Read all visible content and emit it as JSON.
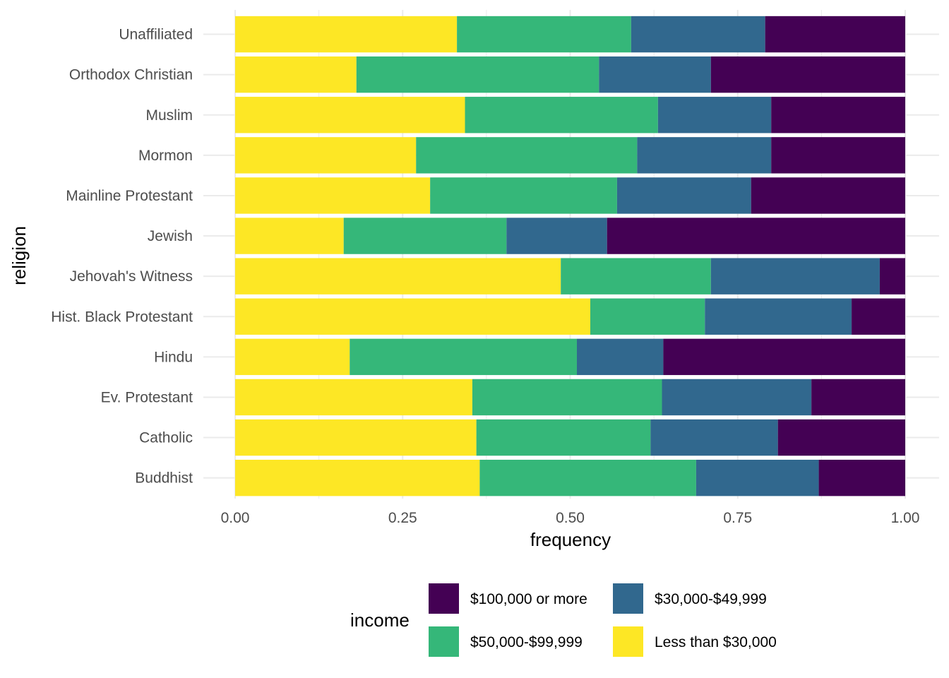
{
  "chart_data": {
    "type": "bar",
    "orientation": "horizontal",
    "stacked": "fill",
    "xlabel": "frequency",
    "ylabel": "religion",
    "xlim": [
      0,
      1
    ],
    "x_ticks": [
      0,
      0.25,
      0.5,
      0.75,
      1
    ],
    "x_tick_labels": [
      "0.00",
      "0.25",
      "0.50",
      "0.75",
      "1.00"
    ],
    "grid": true,
    "legend_title": "income",
    "legend_position": "bottom",
    "categories": [
      "Buddhist",
      "Catholic",
      "Ev. Protestant",
      "Hindu",
      "Hist. Black Protestant",
      "Jehovah's Witness",
      "Jewish",
      "Mainline Protestant",
      "Mormon",
      "Muslim",
      "Orthodox Christian",
      "Unaffiliated"
    ],
    "series": [
      {
        "name": "Less than $30,000",
        "color": "#FDE725",
        "values": [
          0.365,
          0.36,
          0.354,
          0.171,
          0.53,
          0.486,
          0.162,
          0.291,
          0.27,
          0.343,
          0.181,
          0.331
        ]
      },
      {
        "name": "$50,000-$99,999",
        "color": "#35B779",
        "values": [
          0.323,
          0.26,
          0.283,
          0.339,
          0.171,
          0.224,
          0.243,
          0.279,
          0.33,
          0.288,
          0.362,
          0.26
        ]
      },
      {
        "name": "$30,000-$49,999",
        "color": "#31688E",
        "values": [
          0.183,
          0.19,
          0.223,
          0.129,
          0.219,
          0.252,
          0.15,
          0.2,
          0.2,
          0.169,
          0.167,
          0.2
        ]
      },
      {
        "name": "$100,000 or more",
        "color": "#440154",
        "values": [
          0.129,
          0.19,
          0.14,
          0.361,
          0.08,
          0.038,
          0.445,
          0.23,
          0.2,
          0.2,
          0.29,
          0.209
        ]
      }
    ],
    "legend_items": [
      {
        "label": "$100,000 or more",
        "color": "#440154"
      },
      {
        "label": "$30,000-$49,999",
        "color": "#31688E"
      },
      {
        "label": "$50,000-$99,999",
        "color": "#35B779"
      },
      {
        "label": "Less than $30,000",
        "color": "#FDE725"
      }
    ]
  }
}
